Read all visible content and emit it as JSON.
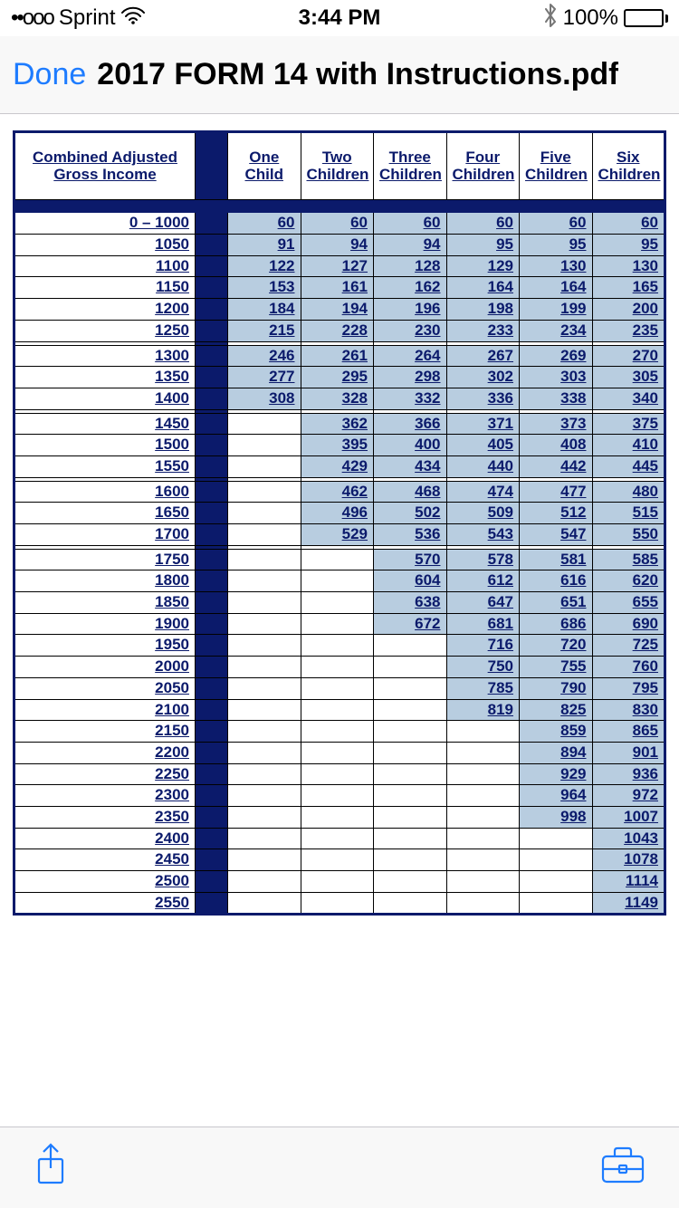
{
  "status": {
    "signal_dots": "••ooo",
    "carrier": "Sprint",
    "time": "3:44 PM",
    "battery_pct": "100%"
  },
  "nav": {
    "done": "Done",
    "title": "2017 FORM 14 with Instructions.pdf"
  },
  "table": {
    "type": "table",
    "colors": {
      "header_text": "#0b1a6b",
      "border": "#000000",
      "dark_band": "#0b1a6b",
      "cell_fill": "#b8cde0",
      "link_text": "#0b1a6b",
      "background": "#ffffff"
    },
    "income_header": "Combined Adjusted Gross Income",
    "columns": [
      "One Child",
      "Two Children",
      "Three Children",
      "Four Children",
      "Five Children",
      "Six Children"
    ],
    "groups": [
      {
        "rows": [
          {
            "income": "0 – 1000",
            "v": [
              "60",
              "60",
              "60",
              "60",
              "60",
              "60"
            ]
          },
          {
            "income": "1050",
            "v": [
              "91",
              "94",
              "94",
              "95",
              "95",
              "95"
            ]
          },
          {
            "income": "1100",
            "v": [
              "122",
              "127",
              "128",
              "129",
              "130",
              "130"
            ]
          },
          {
            "income": "1150",
            "v": [
              "153",
              "161",
              "162",
              "164",
              "164",
              "165"
            ]
          },
          {
            "income": "1200",
            "v": [
              "184",
              "194",
              "196",
              "198",
              "199",
              "200"
            ]
          },
          {
            "income": "1250",
            "v": [
              "215",
              "228",
              "230",
              "233",
              "234",
              "235"
            ]
          }
        ]
      },
      {
        "rows": [
          {
            "income": "1300",
            "v": [
              "246",
              "261",
              "264",
              "267",
              "269",
              "270"
            ]
          },
          {
            "income": "1350",
            "v": [
              "277",
              "295",
              "298",
              "302",
              "303",
              "305"
            ]
          },
          {
            "income": "1400",
            "v": [
              "308",
              "328",
              "332",
              "336",
              "338",
              "340"
            ]
          }
        ]
      },
      {
        "rows": [
          {
            "income": "1450",
            "v": [
              "",
              "362",
              "366",
              "371",
              "373",
              "375"
            ]
          },
          {
            "income": "1500",
            "v": [
              "",
              "395",
              "400",
              "405",
              "408",
              "410"
            ]
          },
          {
            "income": "1550",
            "v": [
              "",
              "429",
              "434",
              "440",
              "442",
              "445"
            ]
          }
        ]
      },
      {
        "rows": [
          {
            "income": "1600",
            "v": [
              "",
              "462",
              "468",
              "474",
              "477",
              "480"
            ]
          },
          {
            "income": "1650",
            "v": [
              "",
              "496",
              "502",
              "509",
              "512",
              "515"
            ]
          },
          {
            "income": "1700",
            "v": [
              "",
              "529",
              "536",
              "543",
              "547",
              "550"
            ]
          }
        ]
      },
      {
        "rows": [
          {
            "income": "1750",
            "v": [
              "",
              "",
              "570",
              "578",
              "581",
              "585"
            ]
          },
          {
            "income": "1800",
            "v": [
              "",
              "",
              "604",
              "612",
              "616",
              "620"
            ]
          },
          {
            "income": "1850",
            "v": [
              "",
              "",
              "638",
              "647",
              "651",
              "655"
            ]
          },
          {
            "income": "1900",
            "v": [
              "",
              "",
              "672",
              "681",
              "686",
              "690"
            ]
          },
          {
            "income": "1950",
            "v": [
              "",
              "",
              "",
              "716",
              "720",
              "725"
            ]
          },
          {
            "income": "2000",
            "v": [
              "",
              "",
              "",
              "750",
              "755",
              "760"
            ]
          },
          {
            "income": "2050",
            "v": [
              "",
              "",
              "",
              "785",
              "790",
              "795"
            ]
          },
          {
            "income": "2100",
            "v": [
              "",
              "",
              "",
              "819",
              "825",
              "830"
            ]
          },
          {
            "income": "2150",
            "v": [
              "",
              "",
              "",
              "",
              "859",
              "865"
            ]
          },
          {
            "income": "2200",
            "v": [
              "",
              "",
              "",
              "",
              "894",
              "901"
            ]
          },
          {
            "income": "2250",
            "v": [
              "",
              "",
              "",
              "",
              "929",
              "936"
            ]
          },
          {
            "income": "2300",
            "v": [
              "",
              "",
              "",
              "",
              "964",
              "972"
            ]
          },
          {
            "income": "2350",
            "v": [
              "",
              "",
              "",
              "",
              "998",
              "1007"
            ]
          },
          {
            "income": "2400",
            "v": [
              "",
              "",
              "",
              "",
              "",
              "1043"
            ]
          },
          {
            "income": "2450",
            "v": [
              "",
              "",
              "",
              "",
              "",
              "1078"
            ]
          },
          {
            "income": "2500",
            "v": [
              "",
              "",
              "",
              "",
              "",
              "1114"
            ]
          },
          {
            "income": "2550",
            "v": [
              "",
              "",
              "",
              "",
              "",
              "1149"
            ]
          }
        ]
      }
    ]
  }
}
